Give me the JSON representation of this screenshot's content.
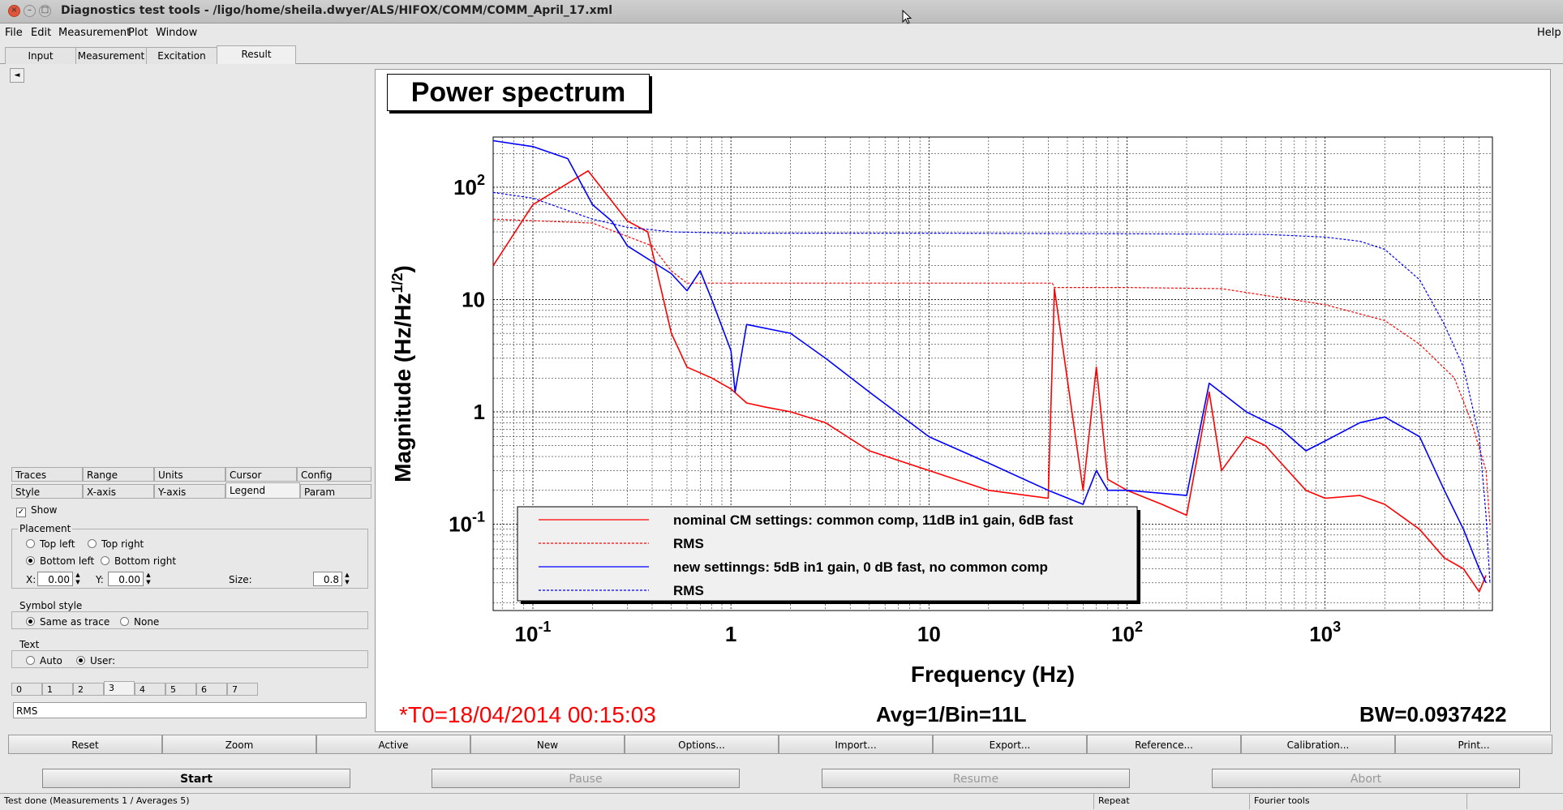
{
  "window": {
    "title": "Diagnostics test tools - /ligo/home/sheila.dwyer/ALS/HIFOX/COMM/COMM_April_17.xml",
    "close_icon": "×",
    "min_icon": "–",
    "max_icon": "□"
  },
  "menu": {
    "file": "File",
    "edit": "Edit",
    "measurement": "Measurement",
    "plot": "Plot",
    "window": "Window",
    "help": "Help"
  },
  "main_tabs": [
    "Input",
    "Measurement",
    "Excitation",
    "Result"
  ],
  "panel": {
    "collapse_icon": "◄",
    "tabs_row1": [
      "Traces",
      "Range",
      "Units",
      "Cursor",
      "Config"
    ],
    "tabs_row2": [
      "Style",
      "X-axis",
      "Y-axis",
      "Legend",
      "Param"
    ],
    "show_label": "Show",
    "show_checked": "✓",
    "placement_label": "Placement",
    "top_left": "Top left",
    "top_right": "Top right",
    "bottom_left": "Bottom left",
    "bottom_right": "Bottom right",
    "x_label": "X:",
    "x_value": "0.00",
    "y_label": "Y:",
    "y_value": "0.00",
    "size_label": "Size:",
    "size_value": "0.8",
    "symbol_style_label": "Symbol style",
    "same_as_trace": "Same as trace",
    "none": "None",
    "text_label": "Text",
    "auto": "Auto",
    "user": "User:",
    "trace_tabs": [
      "0",
      "1",
      "2",
      "3",
      "4",
      "5",
      "6",
      "7"
    ],
    "text_value": "RMS",
    "spin_up": "▲",
    "spin_down": "▼"
  },
  "plot": {
    "title": "Power spectrum",
    "t0": "*T0=18/04/2014 00:15:03",
    "avg": "Avg=1/Bin=11L",
    "bw": "BW=0.0937422"
  },
  "chart_data": {
    "type": "line",
    "title": "Power spectrum",
    "xlabel": "Frequency (Hz)",
    "ylabel": "Magnitude (Hz/Hz^1/2)",
    "x_scale": "log",
    "y_scale": "log",
    "xlim": [
      0.063,
      7000
    ],
    "ylim": [
      0.017,
      280
    ],
    "x_ticks": [
      "10^-1",
      "1",
      "10",
      "10^2",
      "10^3"
    ],
    "y_ticks": [
      "10^-1",
      "1",
      "10",
      "10^2"
    ],
    "grid": true,
    "legend_position": "bottom-left",
    "series": [
      {
        "name": "nominal CM settings: common comp, 11dB in1 gain, 6dB fast",
        "color": "#ff0000",
        "style": "solid",
        "x": [
          0.063,
          0.1,
          0.19,
          0.3,
          0.38,
          0.5,
          0.6,
          0.8,
          1.0,
          1.2,
          1.5,
          2.0,
          3.0,
          5.0,
          10,
          20,
          40,
          43,
          60,
          70,
          80,
          100,
          150,
          200,
          260,
          300,
          400,
          500,
          600,
          800,
          1000,
          1500,
          2000,
          3000,
          4000,
          5000,
          6000,
          6500
        ],
        "y": [
          20,
          70,
          140,
          50,
          40,
          5,
          2.5,
          2.0,
          1.6,
          1.2,
          1.1,
          1.0,
          0.8,
          0.45,
          0.3,
          0.2,
          0.17,
          12.5,
          0.2,
          2.5,
          0.25,
          0.2,
          0.15,
          0.12,
          1.5,
          0.3,
          0.6,
          0.5,
          0.35,
          0.2,
          0.17,
          0.18,
          0.15,
          0.09,
          0.05,
          0.04,
          0.025,
          0.035
        ]
      },
      {
        "name": "RMS",
        "color": "#ff0000",
        "style": "dotted",
        "x": [
          0.063,
          0.2,
          0.4,
          0.5,
          0.6,
          1,
          10,
          42,
          43,
          100,
          300,
          1000,
          2000,
          3000,
          4500,
          5500,
          6500,
          6800
        ],
        "y": [
          52,
          48,
          30,
          18,
          14,
          14,
          14,
          14,
          12.8,
          12.8,
          12.5,
          9.0,
          6.5,
          4.0,
          2.0,
          0.8,
          0.3,
          0.1
        ]
      },
      {
        "name": "new settinngs: 5dB in1 gain, 0 dB fast, no common comp",
        "color": "#0000ff",
        "style": "solid",
        "x": [
          0.063,
          0.1,
          0.15,
          0.2,
          0.25,
          0.3,
          0.5,
          0.6,
          0.7,
          0.8,
          1.0,
          1.05,
          1.2,
          2.0,
          3.0,
          5.0,
          10,
          20,
          40,
          60,
          70,
          80,
          100,
          200,
          260,
          400,
          600,
          800,
          1000,
          1500,
          2000,
          3000,
          4000,
          5000,
          6000,
          6500
        ],
        "y": [
          260,
          230,
          180,
          70,
          50,
          30,
          17,
          12,
          18,
          10,
          3.5,
          1.5,
          6,
          5,
          3,
          1.5,
          0.6,
          0.35,
          0.2,
          0.15,
          0.3,
          0.2,
          0.2,
          0.18,
          1.8,
          1.0,
          0.7,
          0.45,
          0.55,
          0.8,
          0.9,
          0.6,
          0.2,
          0.09,
          0.04,
          0.03
        ]
      },
      {
        "name": "RMS",
        "color": "#0000ff",
        "style": "dotted",
        "x": [
          0.063,
          0.1,
          0.2,
          0.3,
          0.5,
          1,
          10,
          100,
          500,
          1000,
          1500,
          2000,
          3000,
          4000,
          5000,
          6000,
          6500,
          6800
        ],
        "y": [
          90,
          80,
          52,
          44,
          40,
          39,
          39,
          38.5,
          38,
          36,
          33,
          28,
          15,
          6,
          2.5,
          0.6,
          0.12,
          0.03
        ]
      }
    ]
  },
  "toolbar": [
    "Reset",
    "Zoom",
    "Active",
    "New",
    "Options...",
    "Import...",
    "Export...",
    "Reference...",
    "Calibration...",
    "Print..."
  ],
  "controls": {
    "start": "Start",
    "pause": "Pause",
    "resume": "Resume",
    "abort": "Abort"
  },
  "status": {
    "message": "Test done (Measurements 1 / Averages 5)",
    "repeat": "Repeat",
    "fourier": "Fourier tools"
  }
}
